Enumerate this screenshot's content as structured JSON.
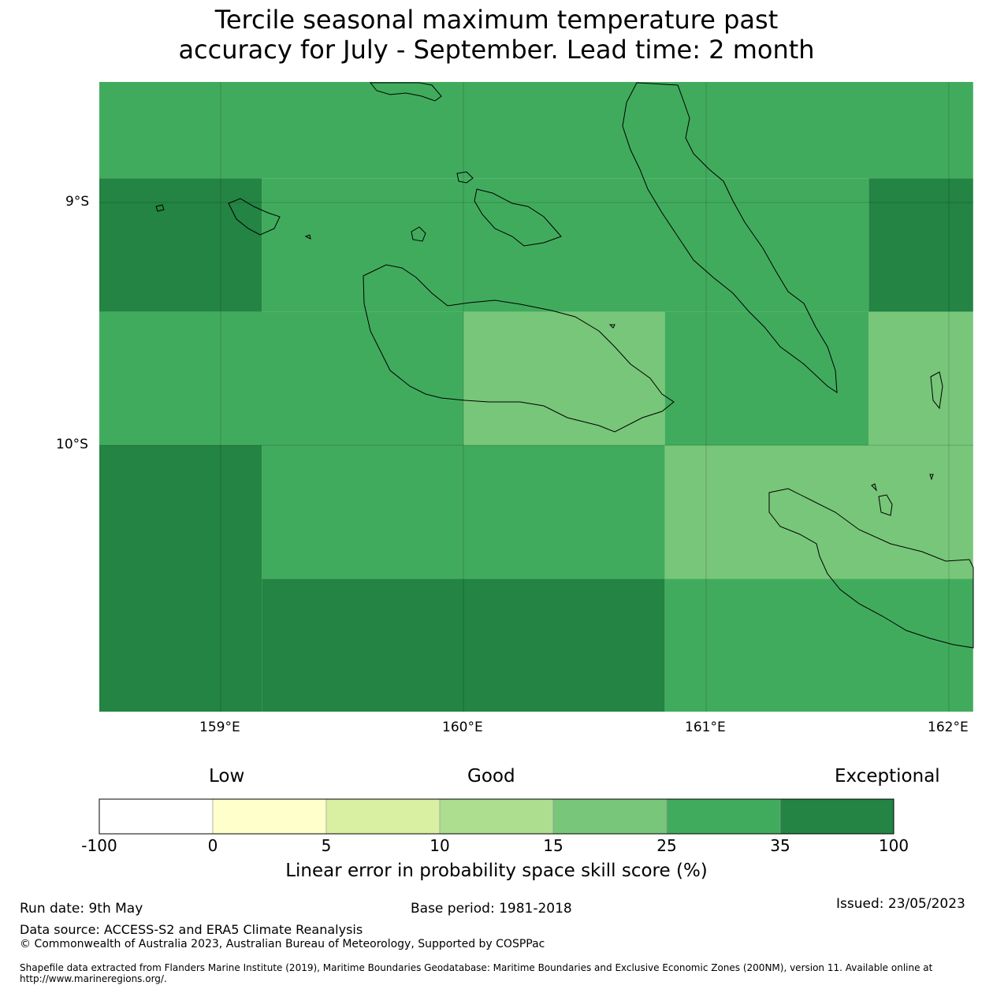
{
  "title": {
    "line1": "Tercile seasonal maximum temperature past",
    "line2": "accuracy for July - September. Lead time: 2 month"
  },
  "map": {
    "lat_labels": [
      "9°S",
      "10°S"
    ],
    "lon_labels": [
      "159°E",
      "160°E",
      "161°E",
      "162°E"
    ],
    "extent": {
      "lon": [
        158.5,
        162.1
      ],
      "lat": [
        -11.1,
        -8.5
      ]
    },
    "cells": [
      {
        "lon": [
          158.5,
          162.1
        ],
        "lat": [
          -8.9,
          -8.5
        ],
        "bin": 5
      },
      {
        "lon": [
          158.5,
          159.17
        ],
        "lat": [
          -9.45,
          -8.9
        ],
        "bin": 6
      },
      {
        "lon": [
          159.17,
          161.67
        ],
        "lat": [
          -9.45,
          -8.9
        ],
        "bin": 5
      },
      {
        "lon": [
          161.67,
          162.1
        ],
        "lat": [
          -9.45,
          -8.9
        ],
        "bin": 6
      },
      {
        "lon": [
          158.5,
          160.0
        ],
        "lat": [
          -10.0,
          -9.45
        ],
        "bin": 5
      },
      {
        "lon": [
          160.0,
          160.83
        ],
        "lat": [
          -10.0,
          -9.45
        ],
        "bin": 4
      },
      {
        "lon": [
          160.83,
          161.67
        ],
        "lat": [
          -10.0,
          -9.45
        ],
        "bin": 5
      },
      {
        "lon": [
          161.67,
          162.1
        ],
        "lat": [
          -10.0,
          -9.45
        ],
        "bin": 4
      },
      {
        "lon": [
          158.5,
          159.17
        ],
        "lat": [
          -11.1,
          -10.0
        ],
        "bin": 6
      },
      {
        "lon": [
          159.17,
          160.83
        ],
        "lat": [
          -10.55,
          -10.0
        ],
        "bin": 5
      },
      {
        "lon": [
          160.83,
          162.1
        ],
        "lat": [
          -10.55,
          -10.0
        ],
        "bin": 4
      },
      {
        "lon": [
          159.17,
          160.83
        ],
        "lat": [
          -11.1,
          -10.55
        ],
        "bin": 6
      },
      {
        "lon": [
          160.83,
          162.1
        ],
        "lat": [
          -11.1,
          -10.55
        ],
        "bin": 5
      }
    ]
  },
  "colorbar": {
    "categories": [
      "Low",
      "Good",
      "Exceptional"
    ],
    "ticks": [
      "-100",
      "0",
      "5",
      "10",
      "15",
      "25",
      "35",
      "100"
    ],
    "colors": [
      "#ffffff",
      "#ffffcc",
      "#d9f0a3",
      "#addd8e",
      "#78c679",
      "#41ab5d",
      "#238443"
    ],
    "label": "Linear error in probability space skill score (%)"
  },
  "footer": {
    "run_date": "Run date: 9th May",
    "base_period": "Base period: 1981-2018",
    "issued": "Issued: 23/05/2023",
    "data_source": "Data source: ACCESS-S2 and ERA5 Climate Reanalysis",
    "copyright": "© Commonwealth of Australia 2023, Australian Bureau of Meteorology, Supported by COSPPac",
    "shapefile": "Shapefile data extracted from Flanders Marine Institute (2019), Maritime Boundaries Geodatabase: Maritime Boundaries and Exclusive Economic Zones (200NM), version 11. Available online at http://www.marineregions.org/."
  }
}
